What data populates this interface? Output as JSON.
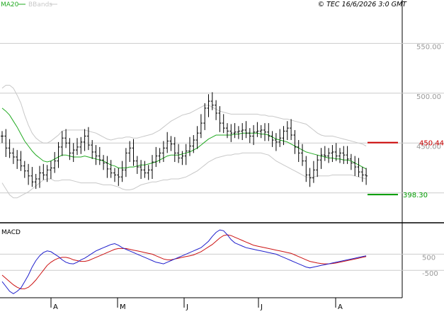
{
  "copyright": "© TEC 16/6/2026 3:0 GMT",
  "colors": {
    "price_bar": "#000000",
    "ma20": "#22aa22",
    "bbands": "#c8c8c8",
    "macd": "#1f1fcc",
    "signal": "#cc1111",
    "resistance": "#cc0000",
    "support": "#009900",
    "grid": "#cccccc",
    "axis_label": "#999999"
  },
  "chart_data": [
    {
      "type": "line",
      "panel": "price",
      "title": "",
      "legend": [
        {
          "label": "MA20",
          "color": "#22aa22"
        },
        {
          "label": "BBands",
          "color": "#c8c8c8"
        }
      ],
      "y_ticks": [
        "550.00",
        "500.00",
        "450.00"
      ],
      "ylim": [
        370,
        585
      ],
      "x_ticks": [
        "A",
        "M",
        "J",
        "J",
        "A"
      ],
      "grid": true,
      "closes": [
        457,
        445,
        440,
        436,
        433,
        427,
        422,
        417,
        411,
        414,
        420,
        418,
        423,
        425,
        432,
        446,
        455,
        450,
        440,
        443,
        446,
        451,
        457,
        448,
        441,
        437,
        433,
        430,
        424,
        420,
        418,
        416,
        423,
        440,
        445,
        432,
        426,
        423,
        420,
        423,
        431,
        437,
        440,
        445,
        452,
        449,
        440,
        435,
        437,
        442,
        447,
        453,
        460,
        470,
        485,
        492,
        488,
        480,
        470,
        465,
        462,
        460,
        461,
        462,
        463,
        460,
        457,
        461,
        462,
        463,
        461,
        457,
        453,
        451,
        455,
        462,
        465,
        458,
        446,
        440,
        432,
        418,
        415,
        423,
        433,
        438,
        437,
        440,
        441,
        437,
        440,
        438,
        434,
        430,
        426,
        421,
        418,
        417
      ],
      "ma20": [
        485,
        482,
        478,
        472,
        466,
        459,
        452,
        447,
        442,
        438,
        435,
        432,
        431,
        432,
        434,
        436,
        438,
        438,
        437,
        436,
        436,
        436,
        437,
        436,
        435,
        434,
        433,
        432,
        430,
        428,
        427,
        425,
        425,
        425,
        426,
        426,
        427,
        428,
        428,
        429,
        430,
        431,
        433,
        435,
        437,
        438,
        438,
        438,
        439,
        440,
        441,
        443,
        445,
        448,
        451,
        454,
        456,
        458,
        458,
        458,
        458,
        458,
        459,
        459,
        460,
        460,
        460,
        460,
        460,
        459,
        459,
        458,
        456,
        454,
        453,
        452,
        451,
        449,
        447,
        445,
        443,
        441,
        440,
        439,
        438,
        437,
        436,
        435,
        435,
        434,
        434,
        433,
        433,
        432,
        430,
        428,
        426,
        424
      ],
      "bb_upper": [
        505,
        508,
        508,
        505,
        498,
        490,
        478,
        468,
        460,
        455,
        452,
        450,
        450,
        452,
        455,
        458,
        462,
        463,
        463,
        463,
        463,
        463,
        463,
        462,
        461,
        460,
        458,
        456,
        454,
        453,
        454,
        455,
        455,
        456,
        456,
        455,
        455,
        456,
        457,
        458,
        459,
        461,
        463,
        466,
        469,
        472,
        474,
        476,
        478,
        479,
        480,
        482,
        484,
        486,
        488,
        488,
        486,
        484,
        482,
        481,
        480,
        479,
        479,
        479,
        479,
        479,
        479,
        479,
        479,
        478,
        478,
        477,
        477,
        476,
        475,
        474,
        474,
        473,
        472,
        471,
        470,
        469,
        466,
        463,
        460,
        458,
        457,
        457,
        457,
        456,
        455,
        454,
        453,
        452,
        451,
        450,
        449,
        447
      ],
      "bb_lower": [
        410,
        404,
        398,
        395,
        395,
        397,
        399,
        401,
        404,
        407,
        410,
        413,
        414,
        414,
        412,
        412,
        413,
        413,
        413,
        412,
        411,
        410,
        410,
        410,
        410,
        410,
        409,
        408,
        408,
        408,
        407,
        406,
        404,
        403,
        403,
        404,
        406,
        408,
        409,
        410,
        411,
        411,
        412,
        413,
        413,
        414,
        414,
        414,
        415,
        416,
        418,
        420,
        422,
        425,
        428,
        431,
        433,
        435,
        436,
        437,
        438,
        438,
        439,
        439,
        440,
        440,
        440,
        440,
        440,
        440,
        439,
        438,
        435,
        432,
        430,
        428,
        426,
        424,
        422,
        420,
        418,
        416,
        416,
        416,
        417,
        417,
        417,
        417,
        418,
        418,
        418,
        418,
        418,
        418,
        417,
        416,
        415,
        414
      ],
      "levels": [
        {
          "name": "resistance",
          "value": 450.44,
          "label": "450.44",
          "color": "#cc0000"
        },
        {
          "name": "support",
          "value": 398.3,
          "label": "398.30",
          "color": "#009900"
        }
      ]
    },
    {
      "type": "line",
      "panel": "macd",
      "title": "MACD",
      "y_ticks": [
        "500",
        "-500"
      ],
      "ylim": [
        -2200,
        2400
      ],
      "series": [
        {
          "values": [
            -1200,
            -1500,
            -1800,
            -1950,
            -1800,
            -1600,
            -1200,
            -800,
            -300,
            100,
            400,
            600,
            700,
            650,
            500,
            350,
            150,
            0,
            -80,
            -100,
            0,
            150,
            250,
            400,
            550,
            700,
            800,
            900,
            1000,
            1100,
            1150,
            1050,
            900,
            800,
            700,
            600,
            500,
            400,
            300,
            200,
            100,
            0,
            -50,
            -100,
            0,
            100,
            200,
            300,
            400,
            500,
            600,
            700,
            800,
            900,
            1100,
            1300,
            1600,
            1850,
            2000,
            1950,
            1700,
            1400,
            1200,
            1100,
            1000,
            900,
            850,
            800,
            750,
            700,
            650,
            600,
            550,
            500,
            400,
            300,
            200,
            100,
            0,
            -100,
            -200,
            -300,
            -350,
            -300,
            -250,
            -200,
            -150,
            -100,
            -50,
            0,
            50,
            100,
            150,
            200,
            250,
            300,
            350,
            400
          ]
        },
        {
          "values": [
            -800,
            -1000,
            -1200,
            -1400,
            -1550,
            -1650,
            -1650,
            -1550,
            -1350,
            -1100,
            -800,
            -500,
            -200,
            0,
            150,
            250,
            300,
            300,
            250,
            150,
            100,
            50,
            50,
            100,
            200,
            300,
            400,
            500,
            600,
            700,
            800,
            850,
            850,
            850,
            800,
            750,
            700,
            650,
            600,
            550,
            500,
            400,
            300,
            200,
            150,
            150,
            200,
            250,
            300,
            350,
            400,
            450,
            550,
            650,
            800,
            950,
            1100,
            1300,
            1500,
            1650,
            1700,
            1650,
            1550,
            1450,
            1350,
            1250,
            1150,
            1050,
            1000,
            950,
            900,
            850,
            800,
            750,
            700,
            650,
            600,
            550,
            450,
            350,
            250,
            150,
            50,
            0,
            -50,
            -80,
            -100,
            -100,
            -80,
            -50,
            0,
            50,
            100,
            150,
            200,
            250,
            300,
            350
          ]
        }
      ]
    }
  ],
  "x_axis": [
    "A",
    "M",
    "J",
    "J",
    "A"
  ]
}
